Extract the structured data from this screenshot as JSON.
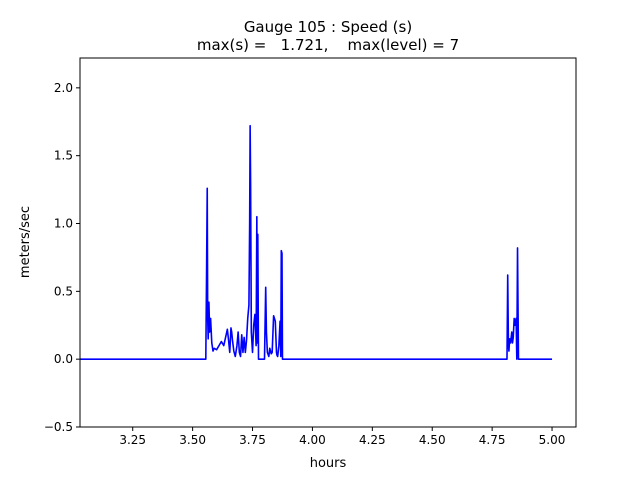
{
  "chart_data": {
    "type": "line",
    "title_line1": "Gauge 105 : Speed (s)",
    "title_line2": "max(s) =   1.721,    max(level) = 7",
    "xlabel": "hours",
    "ylabel": "meters/sec",
    "xlim": [
      3.03,
      5.1
    ],
    "ylim": [
      -0.5,
      2.22
    ],
    "xticks": [
      3.25,
      3.5,
      3.75,
      4.0,
      4.25,
      4.5,
      4.75,
      5.0
    ],
    "xtick_labels": [
      "3.25",
      "3.50",
      "3.75",
      "4.00",
      "4.25",
      "4.50",
      "4.75",
      "5.00"
    ],
    "yticks": [
      -0.5,
      0.0,
      0.5,
      1.0,
      1.5,
      2.0
    ],
    "ytick_labels": [
      "−0.5",
      "0.0",
      "0.5",
      "1.0",
      "1.5",
      "2.0"
    ],
    "grid": false,
    "series": [
      {
        "color": "#0000ff",
        "x": [
          3.03,
          3.555,
          3.558,
          3.561,
          3.563,
          3.565,
          3.568,
          3.571,
          3.575,
          3.58,
          3.585,
          3.59,
          3.6,
          3.61,
          3.62,
          3.63,
          3.64,
          3.645,
          3.65,
          3.655,
          3.66,
          3.663,
          3.667,
          3.672,
          3.678,
          3.685,
          3.69,
          3.695,
          3.7,
          3.705,
          3.71,
          3.715,
          3.72,
          3.725,
          3.73,
          3.735,
          3.738,
          3.74,
          3.742,
          3.745,
          3.75,
          3.755,
          3.76,
          3.765,
          3.768,
          3.77,
          3.772,
          3.775,
          3.778,
          3.781,
          3.785,
          3.79,
          3.795,
          3.8,
          3.805,
          3.808,
          3.812,
          3.818,
          3.822,
          3.828,
          3.832,
          3.838,
          3.845,
          3.85,
          3.852,
          3.855,
          3.86,
          3.865,
          3.868,
          3.87,
          3.873,
          3.875,
          3.88,
          4.79,
          4.812,
          4.815,
          4.818,
          4.82,
          4.823,
          4.827,
          4.832,
          4.835,
          4.838,
          4.842,
          4.846,
          4.85,
          4.853,
          4.856,
          4.858,
          4.86,
          4.863,
          4.866,
          4.87,
          5.0
        ],
        "y": [
          0.0,
          0.0,
          0.6,
          1.26,
          0.3,
          0.15,
          0.42,
          0.2,
          0.3,
          0.12,
          0.06,
          0.08,
          0.07,
          0.1,
          0.13,
          0.1,
          0.18,
          0.22,
          0.14,
          0.05,
          0.23,
          0.2,
          0.13,
          0.06,
          0.02,
          0.1,
          0.2,
          0.05,
          0.02,
          0.18,
          0.05,
          0.16,
          0.05,
          0.14,
          0.3,
          0.4,
          1.0,
          1.721,
          1.3,
          0.2,
          0.05,
          0.25,
          0.33,
          0.1,
          1.05,
          0.12,
          0.92,
          0.0,
          0.0,
          0.0,
          0.0,
          0.0,
          0.0,
          0.0,
          0.53,
          0.2,
          0.05,
          0.02,
          0.08,
          0.04,
          0.05,
          0.32,
          0.28,
          0.05,
          0.03,
          0.02,
          0.1,
          0.28,
          0.02,
          0.8,
          0.78,
          0.0,
          0.0,
          0.0,
          0.0,
          0.62,
          0.1,
          0.06,
          0.15,
          0.12,
          0.2,
          0.12,
          0.16,
          0.3,
          0.25,
          0.3,
          0.0,
          0.82,
          0.4,
          0.0,
          0.0,
          0.0,
          0.0,
          0.0
        ]
      }
    ]
  }
}
